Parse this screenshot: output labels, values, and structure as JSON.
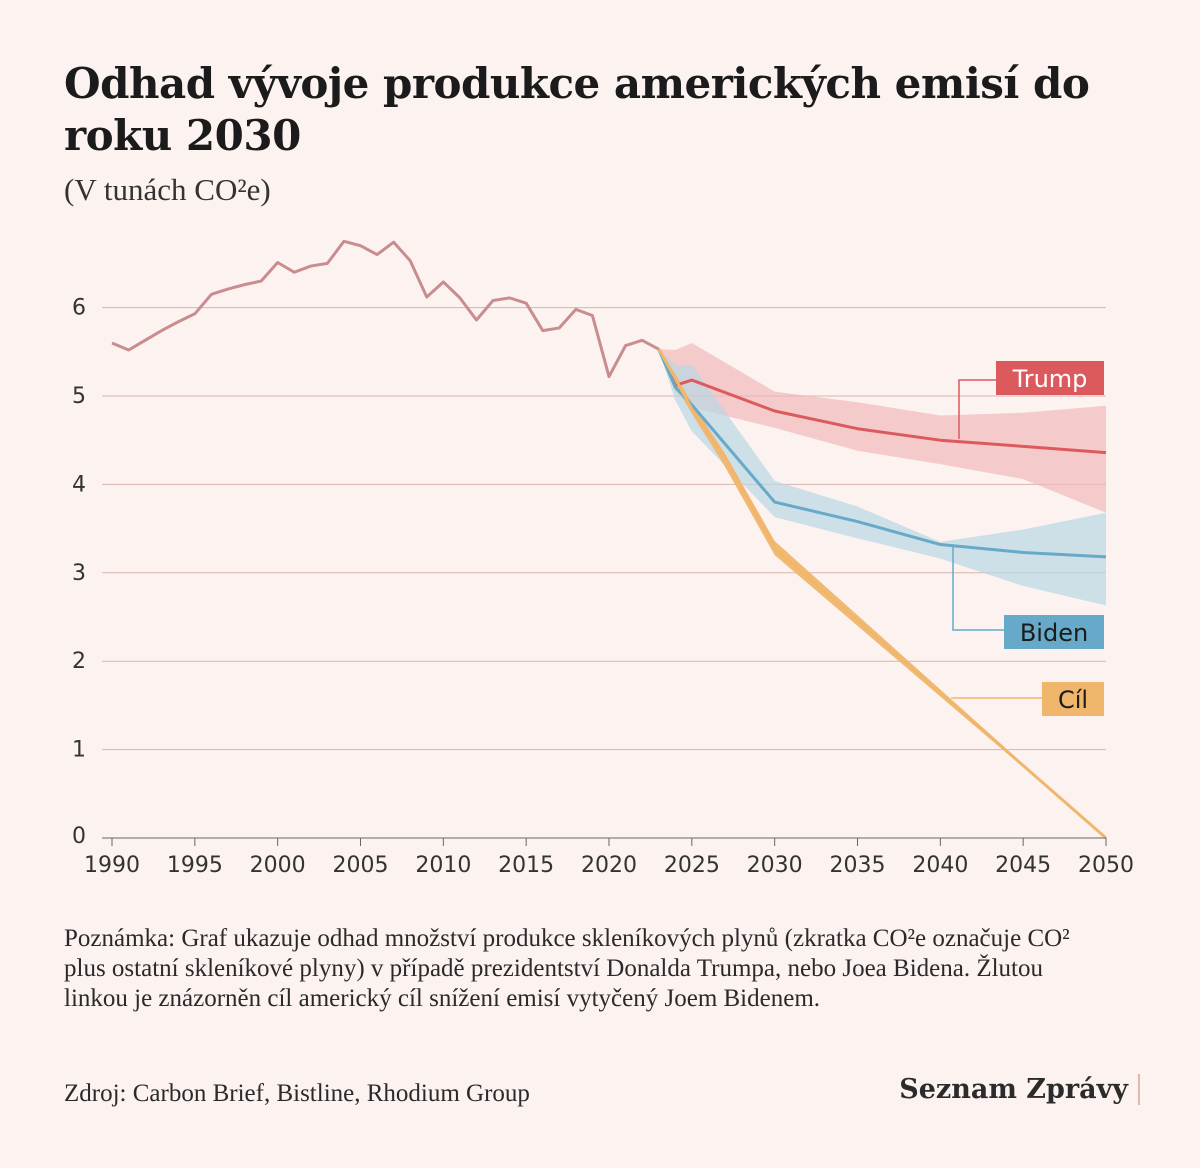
{
  "header": {
    "title": "Odhad vývoje produkce amerických emisí do roku 2030",
    "subtitle": "(V tunách CO²e)"
  },
  "footer": {
    "note": "Poznámka: Graf ukazuje odhad množství produkce skleníkových plynů (zkratka CO²e označuje CO² plus ostatní skleníkové plyny) v případě prezidentství Donalda Trumpa, nebo Joea Bidena. Žlutou linkou je znázorněn cíl americký cíl snížení emisí vytyčený Joem Bidenem.",
    "source": "Zdroj: Carbon Brief, Bistline, Rhodium Group",
    "brand": "Seznam Zprávy"
  },
  "colors": {
    "background": "#fcf3f1",
    "historical": "#c98c8f",
    "trump": "#dc5a5e",
    "trump_band": "#f2b8ba",
    "biden": "#67a9c8",
    "biden_band": "#b9d7e3",
    "target": "#f0b66c",
    "grid": "#d9b3af"
  },
  "chart_data": {
    "type": "line",
    "xlabel": "",
    "ylabel": "",
    "xlim": [
      1990,
      2050
    ],
    "ylim": [
      0,
      6.8
    ],
    "grid": true,
    "xticks": [
      1990,
      1995,
      2000,
      2005,
      2010,
      2015,
      2020,
      2025,
      2030,
      2035,
      2040,
      2045,
      2050
    ],
    "yticks": [
      0,
      1,
      2,
      3,
      4,
      5,
      6
    ],
    "historical": {
      "x": [
        1990,
        1991,
        1992,
        1993,
        1994,
        1995,
        1996,
        1997,
        1998,
        1999,
        2000,
        2001,
        2002,
        2003,
        2004,
        2005,
        2006,
        2007,
        2008,
        2009,
        2010,
        2011,
        2012,
        2013,
        2014,
        2015,
        2016,
        2017,
        2018,
        2019,
        2020,
        2021,
        2022,
        2023
      ],
      "y": [
        5.6,
        5.52,
        5.63,
        5.74,
        5.84,
        5.93,
        6.15,
        6.21,
        6.26,
        6.3,
        6.51,
        6.4,
        6.47,
        6.5,
        6.75,
        6.7,
        6.6,
        6.74,
        6.53,
        6.12,
        6.29,
        6.11,
        5.86,
        6.08,
        6.11,
        6.05,
        5.74,
        5.77,
        5.98,
        5.91,
        5.22,
        5.57,
        5.63,
        5.53
      ]
    },
    "series": [
      {
        "name": "Trump",
        "x": [
          2023,
          2024,
          2025,
          2030,
          2035,
          2040,
          2045,
          2050
        ],
        "y": [
          5.53,
          5.12,
          5.18,
          4.83,
          4.63,
          4.5,
          4.43,
          4.36
        ],
        "band_low": [
          5.53,
          5.05,
          4.87,
          4.64,
          4.38,
          4.23,
          4.06,
          3.68
        ],
        "band_high": [
          5.53,
          5.52,
          5.6,
          5.05,
          4.93,
          4.78,
          4.81,
          4.89
        ]
      },
      {
        "name": "Biden",
        "x": [
          2023,
          2024,
          2025,
          2030,
          2035,
          2040,
          2045,
          2050
        ],
        "y": [
          5.53,
          5.1,
          4.9,
          3.8,
          3.58,
          3.32,
          3.23,
          3.18
        ],
        "band_low": [
          5.53,
          4.95,
          4.6,
          3.63,
          3.39,
          3.16,
          2.85,
          2.63
        ],
        "band_high": [
          5.53,
          5.35,
          5.35,
          4.04,
          3.75,
          3.35,
          3.49,
          3.68
        ]
      },
      {
        "name": "Cíl",
        "x": [
          2023,
          2024,
          2025,
          2027,
          2030,
          2050
        ],
        "y": [
          5.53,
          5.2,
          4.85,
          4.3,
          3.28,
          0
        ],
        "band_low": [
          5.53,
          5.12,
          4.8,
          4.2,
          3.2,
          0
        ],
        "band_high": [
          5.53,
          5.25,
          4.92,
          4.35,
          3.36,
          0
        ]
      }
    ],
    "labels": [
      "Trump",
      "Biden",
      "Cíl"
    ]
  }
}
